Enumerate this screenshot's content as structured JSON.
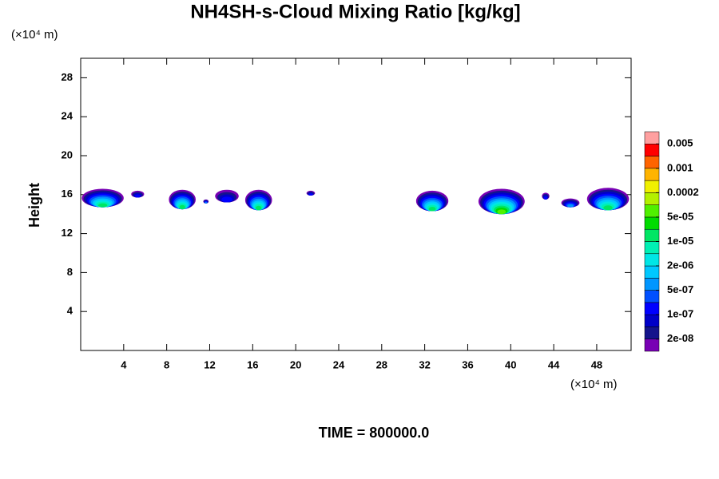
{
  "chart_data": {
    "type": "contour",
    "title": "NH4SH-s-Cloud Mixing Ratio [kg/kg]",
    "ylabel": "Height",
    "x_unit": "(×10⁴ m)",
    "y_unit": "(×10⁴ m)",
    "annotation": "TIME = 800000.0",
    "xlim": [
      0,
      51.2
    ],
    "ylim": [
      0,
      30
    ],
    "xticks": [
      4,
      8,
      12,
      16,
      20,
      24,
      28,
      32,
      36,
      40,
      44,
      48
    ],
    "yticks": [
      4,
      8,
      12,
      16,
      20,
      24,
      28
    ],
    "colorbar": {
      "log": true,
      "colors": [
        "#7800b4",
        "#14148c",
        "#0000c8",
        "#0000ff",
        "#0050ff",
        "#0096ff",
        "#00c8ff",
        "#00e6e6",
        "#00f0b4",
        "#00e664",
        "#00dc00",
        "#50f000",
        "#b4f000",
        "#f0f000",
        "#ffb400",
        "#ff6400",
        "#ff0000",
        "#ffa0a0"
      ],
      "ticks": [
        {
          "value": 2e-08,
          "label": "2e-08"
        },
        {
          "value": 1e-07,
          "label": "1e-07"
        },
        {
          "value": 5e-07,
          "label": "5e-07"
        },
        {
          "value": 2e-06,
          "label": "2e-06"
        },
        {
          "value": 1e-05,
          "label": "1e-05"
        },
        {
          "value": 5e-05,
          "label": "5e-05"
        },
        0.0002,
        0.001,
        0.005
      ]
    },
    "clouds": [
      {
        "x": [
          0.1,
          4.0
        ],
        "y": [
          14.7,
          16.6
        ],
        "peak": 1e-05
      },
      {
        "x": [
          4.7,
          5.9
        ],
        "y": [
          15.7,
          16.4
        ],
        "peak": 1e-07
      },
      {
        "x": [
          8.2,
          10.7
        ],
        "y": [
          14.5,
          16.5
        ],
        "peak": 1e-05
      },
      {
        "x": [
          11.4,
          11.9
        ],
        "y": [
          15.1,
          15.5
        ],
        "peak": 5e-07
      },
      {
        "x": [
          12.5,
          14.7
        ],
        "y": [
          15.2,
          16.5
        ],
        "peak": 1e-07
      },
      {
        "x": [
          15.3,
          17.8
        ],
        "y": [
          14.4,
          16.5
        ],
        "peak": 1e-05
      },
      {
        "x": [
          21.0,
          21.8
        ],
        "y": [
          15.9,
          16.4
        ],
        "peak": 1e-07
      },
      {
        "x": [
          31.2,
          34.2
        ],
        "y": [
          14.3,
          16.4
        ],
        "peak": 1e-05
      },
      {
        "x": [
          37.0,
          41.3
        ],
        "y": [
          14.0,
          16.6
        ],
        "peak": 5e-05
      },
      {
        "x": [
          42.9,
          43.6
        ],
        "y": [
          15.5,
          16.2
        ],
        "peak": 1e-07
      },
      {
        "x": [
          44.7,
          46.4
        ],
        "y": [
          14.7,
          15.6
        ],
        "peak": 5e-07
      },
      {
        "x": [
          47.1,
          51.0
        ],
        "y": [
          14.4,
          16.7
        ],
        "peak": 1e-05
      }
    ]
  }
}
